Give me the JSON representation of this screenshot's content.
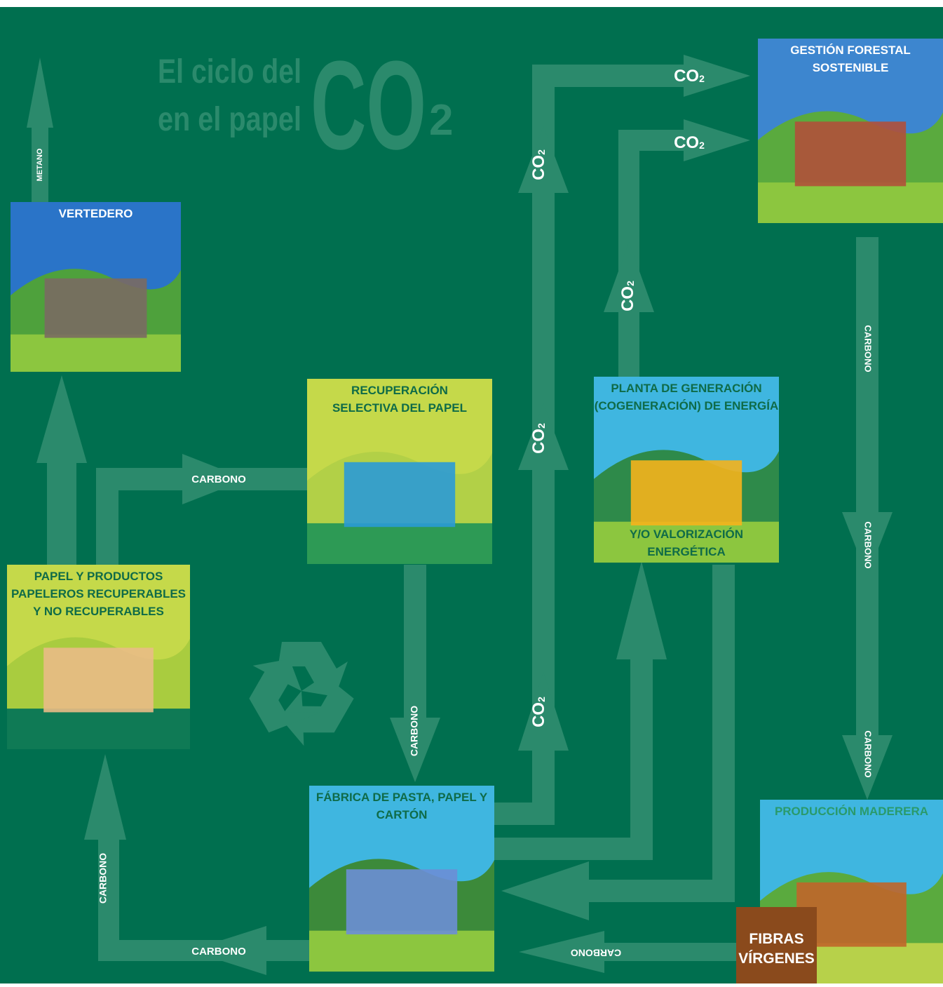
{
  "title": {
    "line1": "El ciclo del",
    "line2": "en el papel",
    "formula": "CO",
    "subscript": "2"
  },
  "nodes": [
    {
      "lines": [
        "VERTEDERO"
      ]
    },
    {
      "lines": [
        "PAPEL Y PRODUCTOS",
        "PAPELEROS RECUPERABLES",
        "Y NO RECUPERABLES"
      ]
    },
    {
      "lines": [
        "RECUPERACIÓN",
        "SELECTIVA DEL PAPEL"
      ]
    },
    {
      "lines": [
        "FÁBRICA DE PASTA, PAPEL Y",
        "CARTÓN"
      ]
    },
    {
      "lines": [
        "PLANTA DE GENERACIÓN",
        "(COGENERACIÓN) DE ENERGÍA"
      ],
      "lower_lines": [
        "Y/O VALORIZACIÓN",
        "ENERGÉTICA"
      ]
    },
    {
      "lines": [
        "GESTIÓN FORESTAL",
        "SOSTENIBLE"
      ]
    },
    {
      "lines": [
        "PRODUCCIÓN MADERERA"
      ]
    },
    {
      "lines": [
        "FIBRAS",
        "VÍRGENES"
      ]
    }
  ],
  "flow_labels": [
    "METANO",
    "CARBONO",
    "CARBONO",
    "CARBONO",
    "CARBONO",
    "CARBONO",
    "CARBONO",
    "CARBONO",
    "CARBONO"
  ],
  "co2_labels": [
    {
      "text": "CO",
      "subscript": "2"
    },
    {
      "text": "CO",
      "subscript": "2"
    },
    {
      "text": "CO",
      "subscript": "2"
    },
    {
      "text": "CO",
      "subscript": "2"
    },
    {
      "text": "CO",
      "subscript": "2"
    },
    {
      "text": "CO",
      "subscript": "2"
    }
  ]
}
